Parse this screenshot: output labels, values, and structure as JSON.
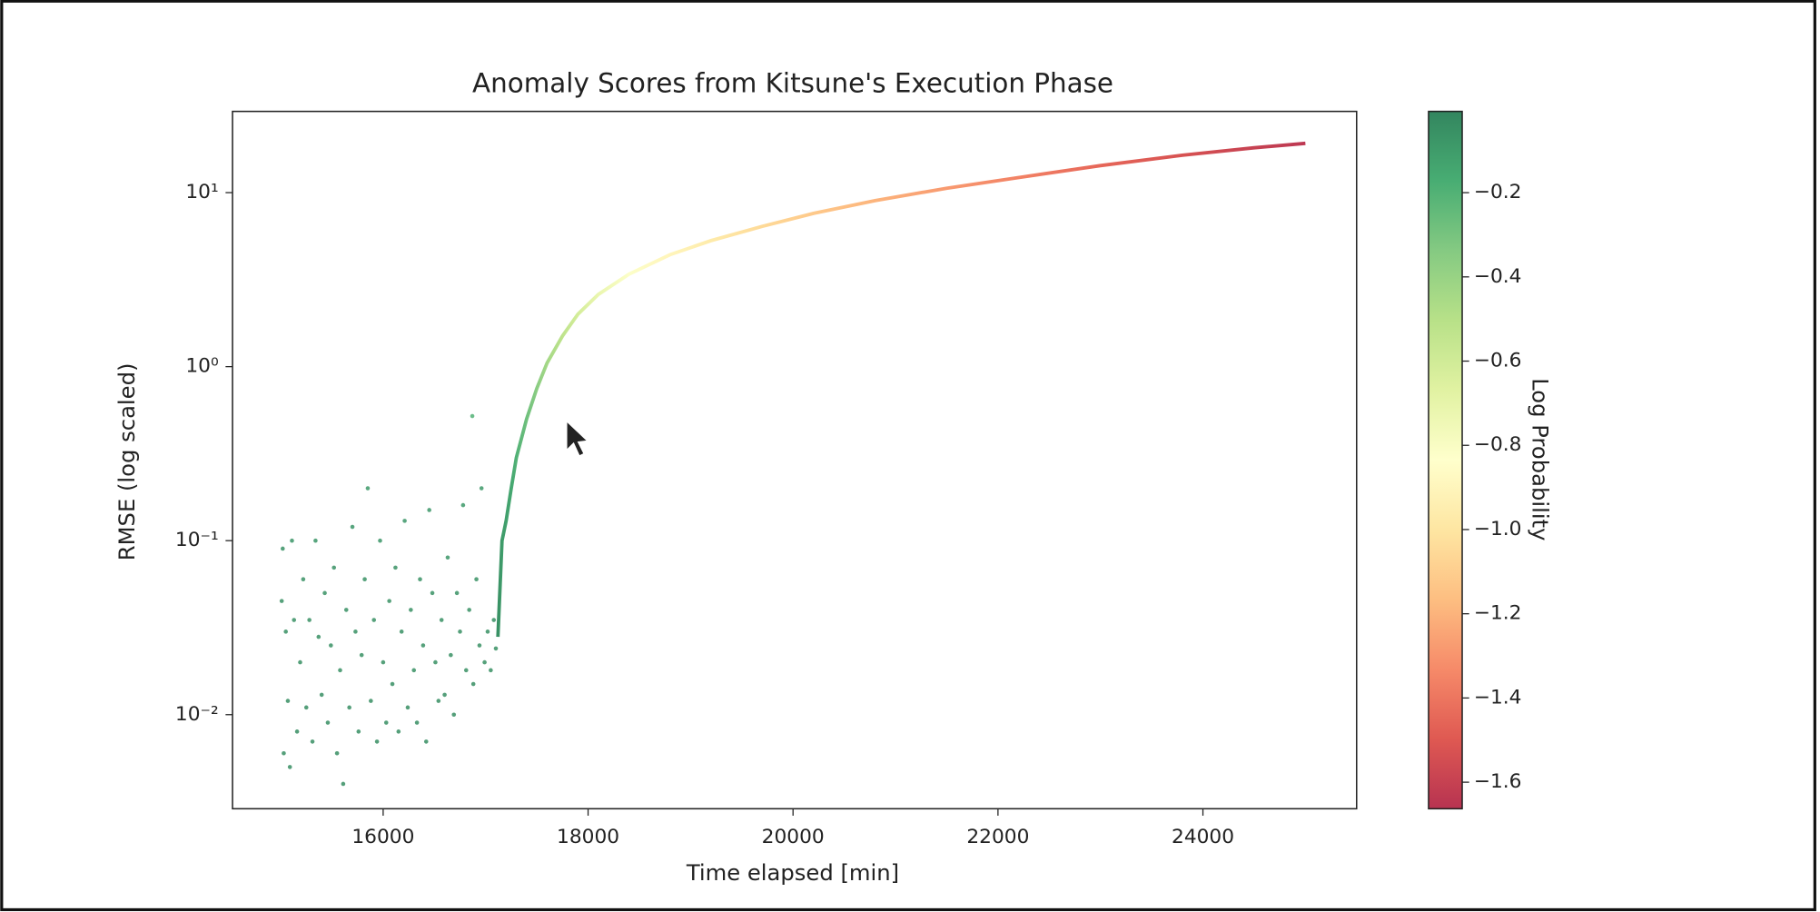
{
  "chart_data": {
    "type": "scatter",
    "title": "Anomaly Scores from Kitsune's Execution Phase",
    "xlabel": "Time elapsed [min]",
    "ylabel": "RMSE (log scaled)",
    "xlim": [
      14530,
      25500
    ],
    "xticks": [
      16000,
      18000,
      20000,
      22000,
      24000
    ],
    "ylim": [
      0.00288,
      29.3
    ],
    "yscale": "log",
    "yticks": [
      {
        "value": 0.01,
        "label": "10⁻²"
      },
      {
        "value": 0.1,
        "label": "10⁻¹"
      },
      {
        "value": 1,
        "label": "10⁰"
      },
      {
        "value": 10,
        "label": "10¹"
      }
    ],
    "colormap": "RdYlGn",
    "colorbar": {
      "label": "Log Probability",
      "lim": [
        -1.663,
        -0.007
      ],
      "ticks": [
        {
          "value": -0.2,
          "label": "−0.2"
        },
        {
          "value": -0.4,
          "label": "−0.4"
        },
        {
          "value": -0.6,
          "label": "−0.6"
        },
        {
          "value": -0.8,
          "label": "−0.8"
        },
        {
          "value": -1.0,
          "label": "−1.0"
        },
        {
          "value": -1.2,
          "label": "−1.2"
        },
        {
          "value": -1.4,
          "label": "−1.4"
        },
        {
          "value": -1.6,
          "label": "−1.6"
        }
      ]
    },
    "series": [
      {
        "style": "points",
        "x": [
          15010,
          15020,
          15030,
          15050,
          15070,
          15090,
          15110,
          15130,
          15160,
          15190,
          15220,
          15250,
          15280,
          15310,
          15340,
          15370,
          15400,
          15430,
          15460,
          15490,
          15520,
          15550,
          15580,
          15610,
          15640,
          15670,
          15700,
          15730,
          15760,
          15790,
          15820,
          15850,
          15880,
          15910,
          15940,
          15970,
          16000,
          16030,
          16060,
          16090,
          16120,
          16150,
          16180,
          16210,
          16240,
          16270,
          16300,
          16330,
          16360,
          16390,
          16420,
          16450,
          16480,
          16510,
          16540,
          16570,
          16600,
          16630,
          16660,
          16690,
          16720,
          16750,
          16780,
          16810,
          16840,
          16870,
          16880,
          16910,
          16940,
          16960,
          16990,
          17020,
          17050,
          17080,
          17100
        ],
        "values": [
          0.045,
          0.09,
          0.006,
          0.03,
          0.012,
          0.005,
          0.1,
          0.035,
          0.008,
          0.02,
          0.06,
          0.011,
          0.035,
          0.007,
          0.1,
          0.028,
          0.013,
          0.05,
          0.009,
          0.025,
          0.07,
          0.006,
          0.018,
          0.004,
          0.04,
          0.011,
          0.12,
          0.03,
          0.008,
          0.022,
          0.06,
          0.2,
          0.012,
          0.035,
          0.007,
          0.1,
          0.02,
          0.009,
          0.045,
          0.015,
          0.07,
          0.008,
          0.03,
          0.13,
          0.011,
          0.04,
          0.018,
          0.009,
          0.06,
          0.025,
          0.007,
          0.15,
          0.05,
          0.02,
          0.012,
          0.035,
          0.013,
          0.08,
          0.022,
          0.01,
          0.05,
          0.03,
          0.16,
          0.018,
          0.04,
          0.52,
          0.015,
          0.06,
          0.025,
          0.2,
          0.02,
          0.03,
          0.018,
          0.035,
          0.024
        ],
        "color_values": [
          -0.05,
          -0.06,
          -0.04,
          -0.05,
          -0.04,
          -0.04,
          -0.07,
          -0.05,
          -0.04,
          -0.05,
          -0.06,
          -0.04,
          -0.05,
          -0.04,
          -0.07,
          -0.05,
          -0.04,
          -0.06,
          -0.04,
          -0.05,
          -0.06,
          -0.04,
          -0.05,
          -0.04,
          -0.05,
          -0.04,
          -0.07,
          -0.05,
          -0.04,
          -0.05,
          -0.06,
          -0.09,
          -0.04,
          -0.05,
          -0.04,
          -0.07,
          -0.05,
          -0.04,
          -0.06,
          -0.04,
          -0.06,
          -0.04,
          -0.05,
          -0.08,
          -0.04,
          -0.05,
          -0.05,
          -0.04,
          -0.06,
          -0.05,
          -0.04,
          -0.08,
          -0.06,
          -0.05,
          -0.04,
          -0.05,
          -0.04,
          -0.07,
          -0.05,
          -0.04,
          -0.06,
          -0.05,
          -0.09,
          -0.05,
          -0.05,
          -0.2,
          -0.04,
          -0.06,
          -0.05,
          -0.09,
          -0.05,
          -0.05,
          -0.05,
          -0.05,
          -0.05
        ]
      },
      {
        "style": "curve",
        "x": [
          17120,
          17160,
          17200,
          17250,
          17300,
          17400,
          17500,
          17600,
          17750,
          17900,
          18100,
          18400,
          18800,
          19200,
          19700,
          20200,
          20800,
          21500,
          22200,
          23000,
          23800,
          24500,
          25000
        ],
        "values": [
          0.028,
          0.1,
          0.13,
          0.2,
          0.3,
          0.5,
          0.75,
          1.05,
          1.5,
          2.0,
          2.6,
          3.4,
          4.4,
          5.3,
          6.4,
          7.6,
          9.0,
          10.6,
          12.2,
          14.3,
          16.4,
          18.1,
          19.2
        ],
        "color_values": [
          -0.05,
          -0.1,
          -0.12,
          -0.15,
          -0.2,
          -0.28,
          -0.36,
          -0.44,
          -0.53,
          -0.62,
          -0.72,
          -0.82,
          -0.9,
          -0.97,
          -1.05,
          -1.12,
          -1.2,
          -1.28,
          -1.36,
          -1.45,
          -1.53,
          -1.6,
          -1.64
        ]
      }
    ]
  }
}
